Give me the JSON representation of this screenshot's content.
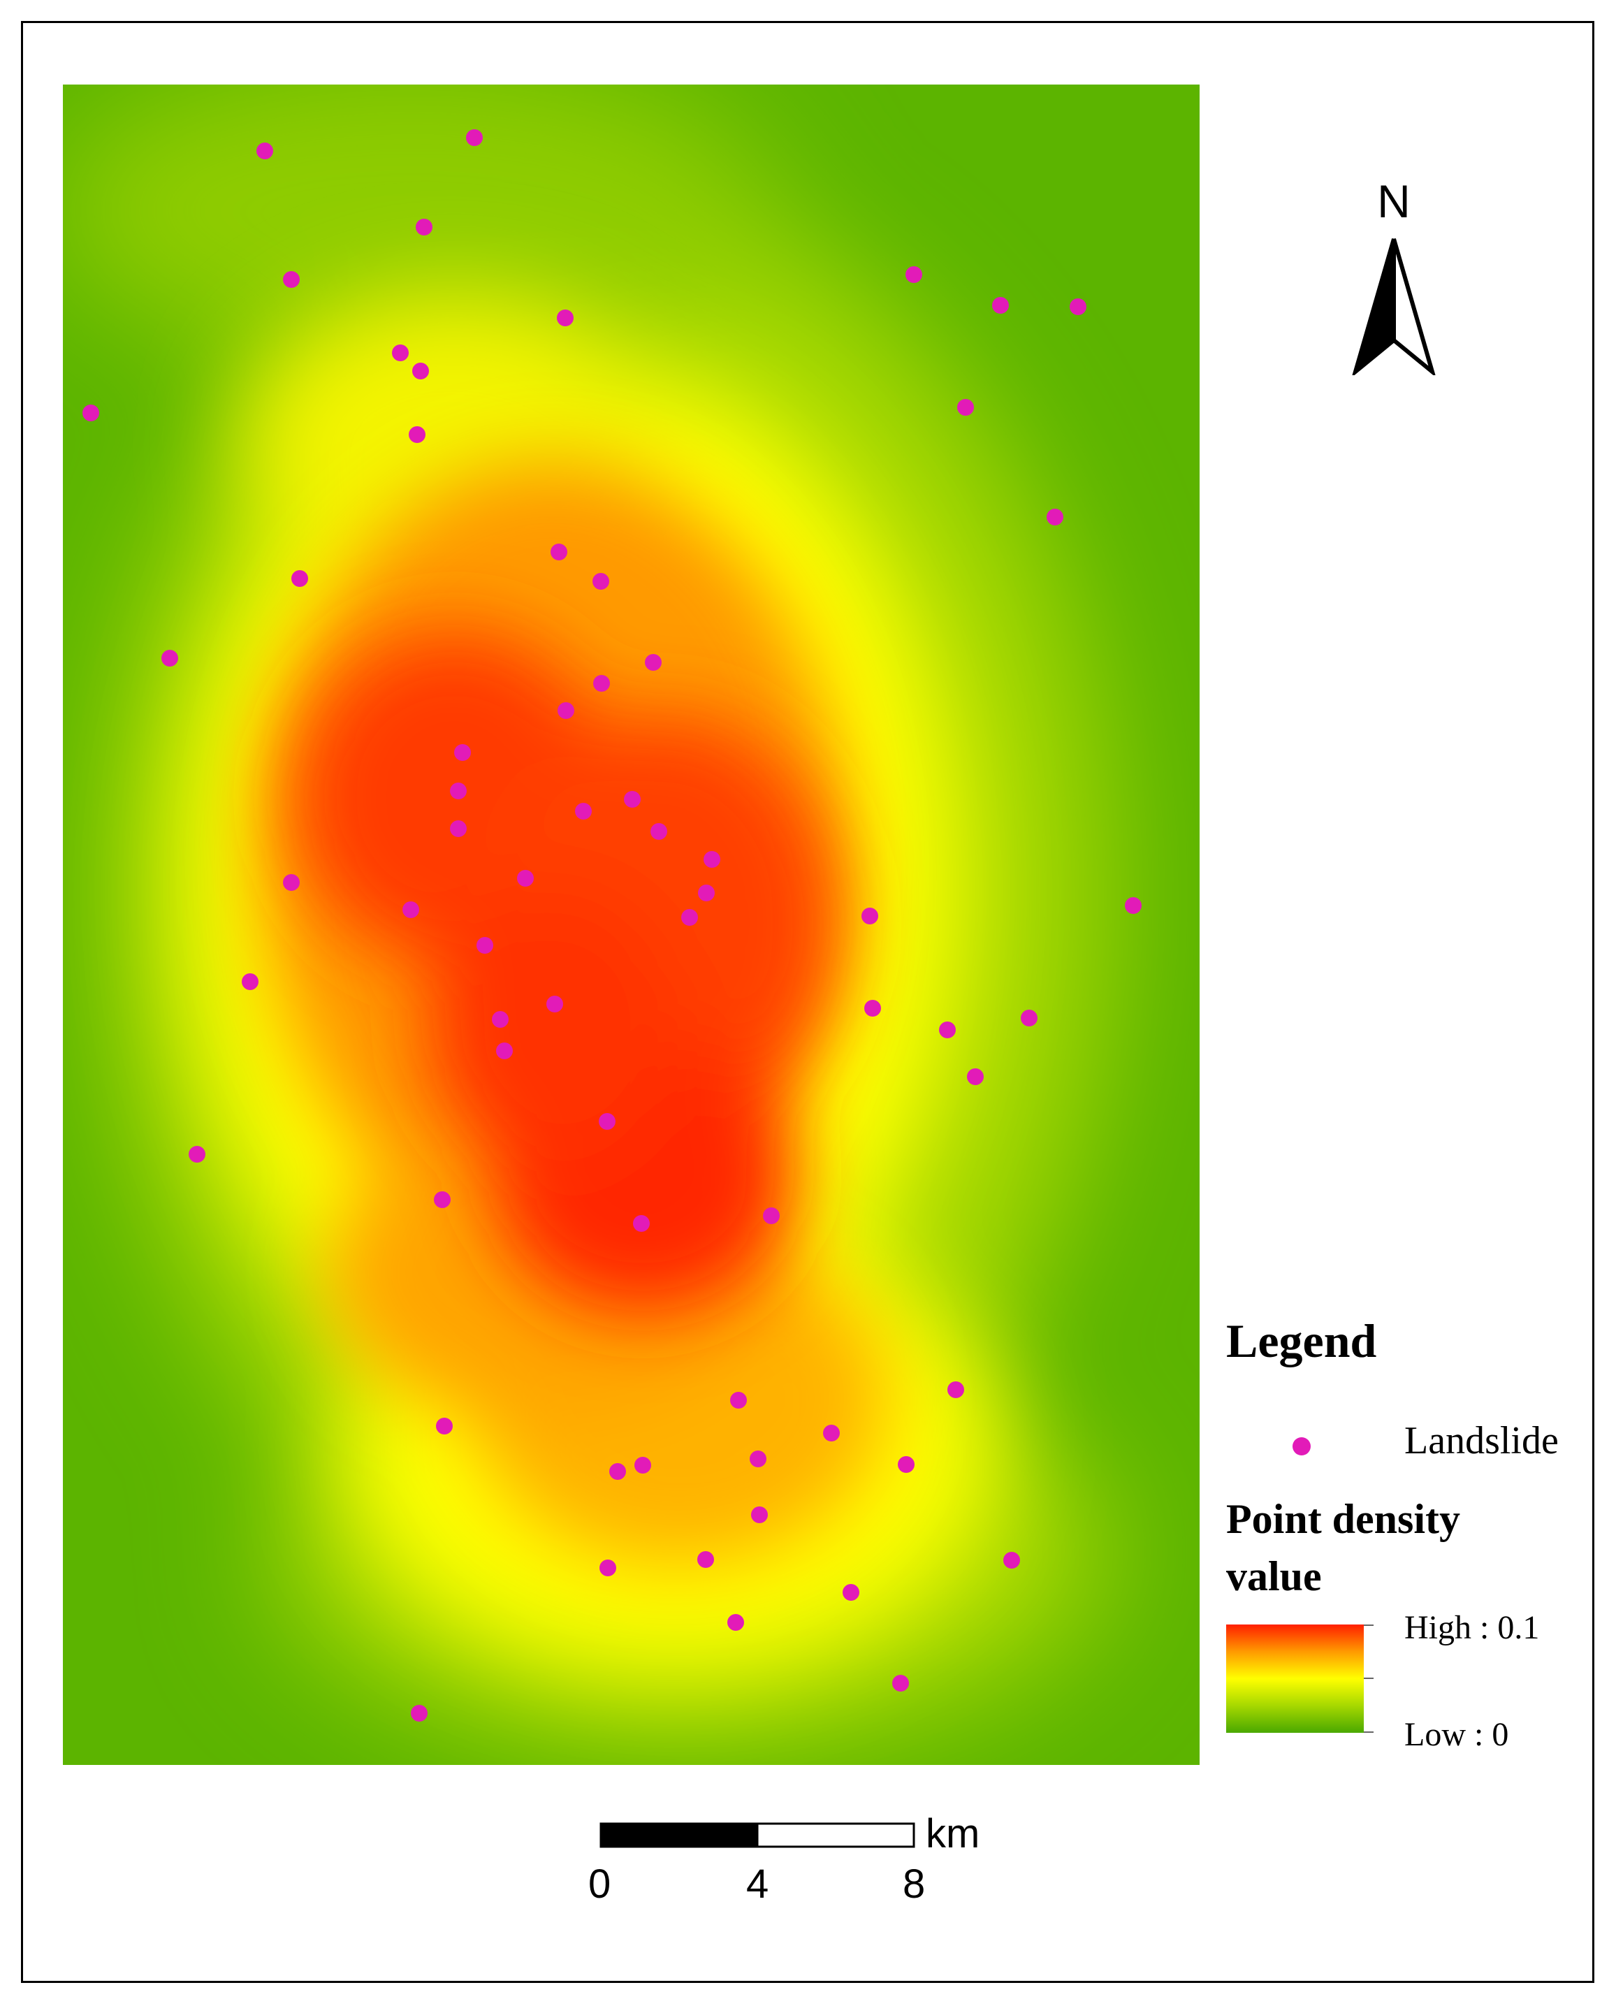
{
  "map": {
    "background_colors": {
      "low": "#4aa800",
      "low_mid": "#a6d800",
      "mid": "#ffff00",
      "mid_high": "#ff9a00",
      "high": "#ff1f00"
    },
    "point_color": "#e21bb8",
    "landslide_count": 69
  },
  "north_arrow": {
    "label": "N",
    "icon": "north-arrow-icon"
  },
  "legend": {
    "title": "Legend",
    "landslide_label": "Landslide",
    "density_title": "Point density value",
    "high_label": "High : 0.1",
    "low_label": "Low : 0",
    "ramp_colors": [
      "#ff1f00",
      "#ff9a00",
      "#ffff00",
      "#a6d800",
      "#4aa800"
    ]
  },
  "scale_bar": {
    "unit": "km",
    "labels": [
      "0",
      "4",
      "8"
    ]
  }
}
